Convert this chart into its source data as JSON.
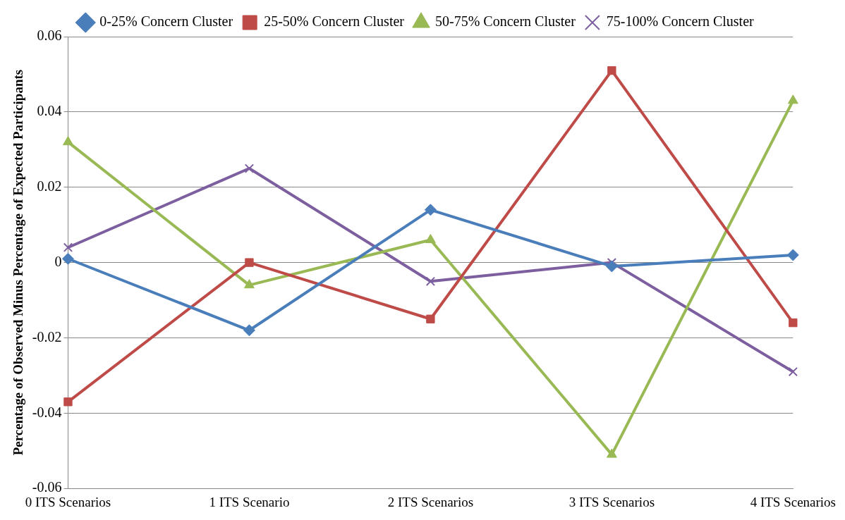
{
  "chart_data": {
    "type": "line",
    "ylabel": "Percentage of Observed Minus Percentage of Expected Participants",
    "categories": [
      "0 ITS Scenarios",
      "1 ITS Scenario",
      "2 ITS Scenarios",
      "3 ITS Scenarios",
      "4 ITS Scenarios"
    ],
    "series": [
      {
        "name": "0-25% Concern Cluster",
        "color": "#4a7ebb",
        "marker": "diamond",
        "values": [
          0.001,
          -0.018,
          0.014,
          -0.001,
          0.002
        ]
      },
      {
        "name": "25-50% Concern Cluster",
        "color": "#be4b48",
        "marker": "square",
        "values": [
          -0.037,
          0,
          -0.015,
          0.051,
          -0.016
        ]
      },
      {
        "name": "50-75% Concern Cluster",
        "color": "#98b954",
        "marker": "triangle",
        "values": [
          0.032,
          -0.006,
          0.006,
          -0.051,
          0.043
        ]
      },
      {
        "name": "75-100% Concern Cluster",
        "color": "#7d5fa0",
        "marker": "cross",
        "values": [
          0.004,
          0.025,
          -0.005,
          0,
          -0.029
        ]
      }
    ],
    "ylim": [
      -0.06,
      0.06
    ],
    "yticks": [
      -0.06,
      -0.04,
      -0.02,
      0,
      0.02,
      0.04,
      0.06
    ],
    "grid": "y",
    "legend": "top",
    "line_style": "solid"
  }
}
